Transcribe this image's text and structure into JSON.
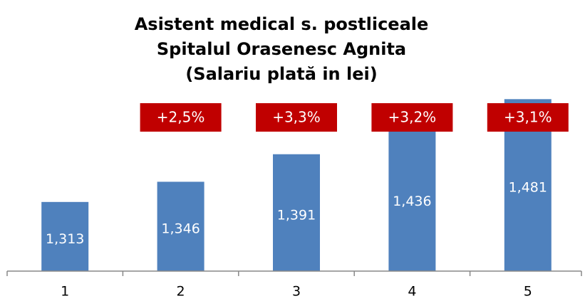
{
  "chart_data": {
    "type": "bar",
    "title": [
      "Asistent medical s. postliceale",
      "Spitalul Orasenesc Agnita",
      "(Salariu plată in lei)"
    ],
    "categories": [
      "1",
      "2",
      "3",
      "4",
      "5"
    ],
    "values": [
      1313,
      1346,
      1391,
      1436,
      1481
    ],
    "value_labels": [
      "1,313",
      "1,346",
      "1,391",
      "1,436",
      "1,481"
    ],
    "annotations": [
      null,
      "+2,5%",
      "+3,3%",
      "+3,2%",
      "+3,1%"
    ],
    "color": "#4f81bd",
    "annotation_color": "#c00000",
    "ylim": [
      1200,
      1500
    ]
  }
}
